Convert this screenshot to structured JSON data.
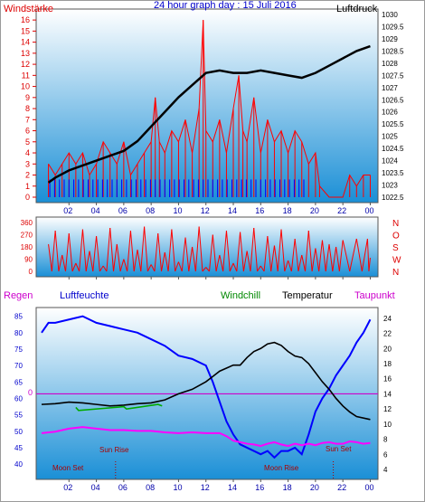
{
  "header": {
    "title": "24 hour graph day : 15 Juli 2016",
    "left_label": "Windstärke",
    "right_label": "Luftdruck"
  },
  "colors": {
    "wind": "#ff0000",
    "gust_blue": "#0000ff",
    "pressure": "#000000",
    "humidity": "#0000ff",
    "windchill": "#00aa00",
    "temperature": "#000000",
    "dewpoint": "#ff00ff",
    "regen": "#cc00cc",
    "sky_top": "#ffffff",
    "sky_bottom": "#1a8fd6"
  },
  "chart_data": [
    {
      "type": "line",
      "title": "24 hour graph day : 15 Juli 2016",
      "xlabel": "",
      "x_ticks": [
        "02",
        "04",
        "06",
        "08",
        "10",
        "12",
        "14",
        "16",
        "18",
        "20",
        "22",
        "00"
      ],
      "left_axis": {
        "label": "Windstärke",
        "ticks": [
          "0",
          "1",
          "2",
          "3",
          "4",
          "5",
          "6",
          "7",
          "8",
          "9",
          "10",
          "11",
          "12",
          "13",
          "14",
          "15",
          "16"
        ],
        "ylim": [
          0,
          16.5
        ]
      },
      "right_axis": {
        "label": "Luftdruck",
        "ticks": [
          "1022.5",
          "1023",
          "1023.5",
          "1024",
          "1024.5",
          "1025",
          "1025.5",
          "1026",
          "1026.5",
          "1027",
          "1027.5",
          "1028",
          "1028.5",
          "1029",
          "1029.5",
          "1030"
        ],
        "ylim": [
          1022.5,
          1030
        ]
      },
      "series": [
        {
          "name": "Luftdruck",
          "axis": "right",
          "points": [
            [
              0.5,
              1023.1
            ],
            [
              1,
              1023.3
            ],
            [
              2,
              1023.6
            ],
            [
              3,
              1023.8
            ],
            [
              4,
              1024.0
            ],
            [
              5,
              1024.2
            ],
            [
              6,
              1024.4
            ],
            [
              7,
              1024.8
            ],
            [
              8,
              1025.4
            ],
            [
              9,
              1026.0
            ],
            [
              10,
              1026.6
            ],
            [
              11,
              1027.1
            ],
            [
              12,
              1027.6
            ],
            [
              13,
              1027.7
            ],
            [
              14,
              1027.6
            ],
            [
              15,
              1027.6
            ],
            [
              16,
              1027.7
            ],
            [
              17,
              1027.6
            ],
            [
              18,
              1027.5
            ],
            [
              19,
              1027.4
            ],
            [
              20,
              1027.6
            ],
            [
              21,
              1027.9
            ],
            [
              22,
              1028.2
            ],
            [
              23,
              1028.5
            ],
            [
              24,
              1028.7
            ]
          ]
        },
        {
          "name": "Windstärke",
          "axis": "left",
          "points": [
            [
              0.5,
              3
            ],
            [
              1,
              2
            ],
            [
              1.5,
              3
            ],
            [
              2,
              4
            ],
            [
              2.5,
              3
            ],
            [
              3,
              4
            ],
            [
              3.5,
              2
            ],
            [
              4,
              3
            ],
            [
              4.5,
              5
            ],
            [
              5,
              4
            ],
            [
              5.5,
              3
            ],
            [
              6,
              5
            ],
            [
              6.5,
              2
            ],
            [
              7,
              3
            ],
            [
              7.5,
              4
            ],
            [
              8,
              5
            ],
            [
              8.3,
              9
            ],
            [
              8.6,
              5
            ],
            [
              9,
              4
            ],
            [
              9.5,
              6
            ],
            [
              10,
              5
            ],
            [
              10.5,
              7
            ],
            [
              11,
              4
            ],
            [
              11.5,
              8
            ],
            [
              11.8,
              16
            ],
            [
              12,
              6
            ],
            [
              12.5,
              5
            ],
            [
              13,
              7
            ],
            [
              13.5,
              4
            ],
            [
              14,
              8
            ],
            [
              14.4,
              11
            ],
            [
              14.7,
              6
            ],
            [
              15,
              5
            ],
            [
              15.5,
              9
            ],
            [
              16,
              4
            ],
            [
              16.5,
              7
            ],
            [
              17,
              5
            ],
            [
              17.5,
              6
            ],
            [
              18,
              4
            ],
            [
              18.5,
              6
            ],
            [
              19,
              5
            ],
            [
              19.5,
              3
            ],
            [
              20,
              4
            ],
            [
              20.3,
              1
            ],
            [
              21,
              0
            ],
            [
              22,
              0
            ],
            [
              22.5,
              2
            ],
            [
              23,
              1
            ],
            [
              23.5,
              2
            ],
            [
              24,
              2
            ]
          ]
        }
      ]
    },
    {
      "type": "line",
      "title": "",
      "x_ticks": [
        "02",
        "04",
        "06",
        "08",
        "10",
        "12",
        "14",
        "16",
        "18",
        "20",
        "22",
        "00"
      ],
      "left_axis": {
        "label": "",
        "ticks": [
          "0",
          "90",
          "180",
          "270",
          "360"
        ],
        "ylim": [
          0,
          360
        ]
      },
      "right_axis": {
        "label": "",
        "ticks": [
          "N",
          "W",
          "S",
          "O",
          "N"
        ]
      },
      "series": [
        {
          "name": "Windrichtung",
          "axis": "left",
          "points": [
            [
              0.5,
              200
            ],
            [
              1,
              300
            ],
            [
              1.5,
              120
            ],
            [
              2,
              280
            ],
            [
              2.5,
              60
            ],
            [
              3,
              310
            ],
            [
              3.5,
              150
            ],
            [
              4,
              260
            ],
            [
              4.5,
              40
            ],
            [
              5,
              320
            ],
            [
              5.5,
              200
            ],
            [
              6,
              90
            ],
            [
              6.5,
              300
            ],
            [
              7,
              160
            ],
            [
              7.5,
              330
            ],
            [
              8,
              50
            ],
            [
              8.5,
              280
            ],
            [
              9,
              140
            ],
            [
              9.5,
              310
            ],
            [
              10,
              70
            ],
            [
              10.5,
              250
            ],
            [
              11,
              180
            ],
            [
              11.5,
              330
            ],
            [
              12,
              30
            ],
            [
              12.5,
              270
            ],
            [
              13,
              120
            ],
            [
              13.5,
              300
            ],
            [
              14,
              60
            ],
            [
              14.5,
              290
            ],
            [
              15,
              150
            ],
            [
              15.5,
              320
            ],
            [
              16,
              40
            ],
            [
              16.5,
              260
            ],
            [
              17,
              190
            ],
            [
              17.5,
              310
            ],
            [
              18,
              80
            ],
            [
              18.5,
              240
            ],
            [
              19,
              120
            ],
            [
              19.5,
              300
            ],
            [
              20,
              170
            ],
            [
              20.5,
              230
            ],
            [
              21,
              200
            ],
            [
              21.5,
              180
            ],
            [
              22,
              230
            ],
            [
              23,
              240
            ],
            [
              23.8,
              240
            ],
            [
              24,
              100
            ]
          ]
        }
      ]
    },
    {
      "type": "line",
      "title": "",
      "x_ticks": [
        "02",
        "04",
        "06",
        "08",
        "10",
        "12",
        "14",
        "16",
        "18",
        "20",
        "22",
        "00"
      ],
      "left_axis": {
        "label": "Luftfeuchte",
        "ticks": [
          "40",
          "45",
          "50",
          "55",
          "60",
          "65",
          "70",
          "75",
          "80",
          "85"
        ],
        "ylim": [
          37,
          86
        ]
      },
      "right_axis": {
        "label": "Temperatur",
        "ticks": [
          "4",
          "6",
          "8",
          "10",
          "12",
          "14",
          "16",
          "18",
          "20",
          "22",
          "24"
        ],
        "ylim": [
          3.4,
          24.7
        ]
      },
      "legend": [
        "Regen",
        "Luftfeuchte",
        "Windchill",
        "Temperatur",
        "Taupunkt"
      ],
      "annotations": [
        "Moon Set",
        "Sun Rise",
        "Moon Rise",
        "Sun Set"
      ],
      "rain_marker": "0",
      "series": [
        {
          "name": "Luftfeuchte",
          "axis": "left",
          "points": [
            [
              0,
              80
            ],
            [
              0.5,
              83
            ],
            [
              1,
              83
            ],
            [
              2,
              84
            ],
            [
              3,
              85
            ],
            [
              4,
              83
            ],
            [
              5,
              82
            ],
            [
              6,
              81
            ],
            [
              7,
              80
            ],
            [
              8,
              78
            ],
            [
              9,
              76
            ],
            [
              10,
              73
            ],
            [
              11,
              72
            ],
            [
              12,
              70
            ],
            [
              12.5,
              65
            ],
            [
              13,
              59
            ],
            [
              13.5,
              53
            ],
            [
              14,
              49
            ],
            [
              14.5,
              46
            ],
            [
              15,
              45
            ],
            [
              15.5,
              44
            ],
            [
              16,
              43
            ],
            [
              16.5,
              44
            ],
            [
              17,
              42
            ],
            [
              17.5,
              44
            ],
            [
              18,
              44
            ],
            [
              18.5,
              45
            ],
            [
              19,
              43
            ],
            [
              19.5,
              49
            ],
            [
              20,
              56
            ],
            [
              20.5,
              60
            ],
            [
              21,
              63
            ],
            [
              21.5,
              67
            ],
            [
              22,
              70
            ],
            [
              22.5,
              73
            ],
            [
              23,
              77
            ],
            [
              23.5,
              80
            ],
            [
              24,
              84
            ]
          ]
        },
        {
          "name": "Temperatur",
          "axis": "right",
          "points": [
            [
              0,
              12.6
            ],
            [
              1,
              12.7
            ],
            [
              2,
              12.9
            ],
            [
              3,
              12.8
            ],
            [
              4,
              12.6
            ],
            [
              5,
              12.4
            ],
            [
              6,
              12.5
            ],
            [
              7,
              12.7
            ],
            [
              8,
              12.8
            ],
            [
              9,
              13.2
            ],
            [
              10,
              14.0
            ],
            [
              11,
              14.6
            ],
            [
              12,
              15.6
            ],
            [
              12.5,
              16.3
            ],
            [
              13,
              17.0
            ],
            [
              13.5,
              17.4
            ],
            [
              14,
              17.8
            ],
            [
              14.5,
              17.8
            ],
            [
              15,
              18.8
            ],
            [
              15.5,
              19.6
            ],
            [
              16,
              20.0
            ],
            [
              16.5,
              20.6
            ],
            [
              17,
              20.8
            ],
            [
              17.5,
              20.4
            ],
            [
              18,
              19.6
            ],
            [
              18.5,
              19.0
            ],
            [
              19,
              18.8
            ],
            [
              19.5,
              18.0
            ],
            [
              20,
              16.8
            ],
            [
              20.5,
              15.6
            ],
            [
              21,
              14.6
            ],
            [
              21.5,
              13.4
            ],
            [
              22,
              12.4
            ],
            [
              22.5,
              11.6
            ],
            [
              23,
              11.0
            ],
            [
              24,
              10.6
            ]
          ]
        },
        {
          "name": "Windchill",
          "axis": "right",
          "points": [
            [
              2.5,
              12.2
            ],
            [
              2.7,
              11.8
            ],
            [
              6,
              12.3
            ],
            [
              6.2,
              12.0
            ],
            [
              8.5,
              12.6
            ],
            [
              8.8,
              12.4
            ]
          ]
        },
        {
          "name": "Taupunkt",
          "axis": "right",
          "points": [
            [
              0,
              8.8
            ],
            [
              1,
              9.0
            ],
            [
              2,
              9.4
            ],
            [
              3,
              9.6
            ],
            [
              4,
              9.4
            ],
            [
              5,
              9.2
            ],
            [
              6,
              9.2
            ],
            [
              7,
              9.1
            ],
            [
              8,
              9.1
            ],
            [
              9,
              8.9
            ],
            [
              10,
              8.8
            ],
            [
              11,
              8.9
            ],
            [
              12,
              8.8
            ],
            [
              13,
              8.8
            ],
            [
              13.5,
              8.4
            ],
            [
              14,
              7.8
            ],
            [
              14.5,
              7.6
            ],
            [
              15,
              7.4
            ],
            [
              15.5,
              7.3
            ],
            [
              16,
              7.1
            ],
            [
              16.5,
              7.4
            ],
            [
              17,
              7.6
            ],
            [
              17.5,
              7.3
            ],
            [
              18,
              7.1
            ],
            [
              18.5,
              7.4
            ],
            [
              19,
              7.2
            ],
            [
              19.5,
              7.4
            ],
            [
              20,
              7.2
            ],
            [
              20.5,
              7.5
            ],
            [
              21,
              7.6
            ],
            [
              21.5,
              7.4
            ],
            [
              22,
              7.4
            ],
            [
              22.5,
              7.7
            ],
            [
              23,
              7.6
            ],
            [
              23.5,
              7.4
            ],
            [
              24,
              7.5
            ]
          ]
        }
      ]
    }
  ]
}
